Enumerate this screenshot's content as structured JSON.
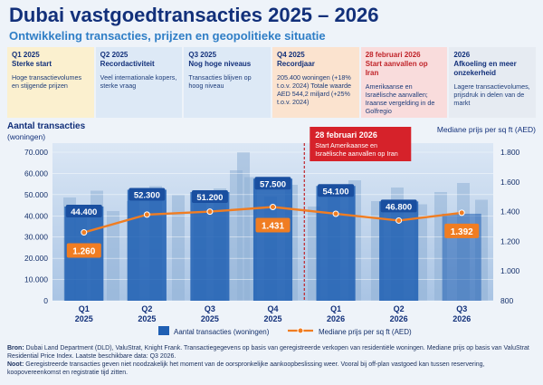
{
  "header": {
    "title": "Dubai vastgoedtransacties 2025 – 2026",
    "subtitle": "Ontwikkeling transacties, prijzen en geopolitieke situatie"
  },
  "timeline": [
    {
      "period": "Q1 2025",
      "heading": "Sterke start",
      "desc": "Hoge transactievolumes en stijgende prijzen",
      "color": "#fbf0cf"
    },
    {
      "period": "Q2 2025",
      "heading": "Recordactiviteit",
      "desc": "Veel internationale kopers, sterke vraag",
      "color": "#dde9f6"
    },
    {
      "period": "Q3 2025",
      "heading": "Nog hoge niveaus",
      "desc": "Transacties blijven op hoog niveau",
      "color": "#dde9f6"
    },
    {
      "period": "Q4 2025",
      "heading": "Recordjaar",
      "desc": "205.400 woningen (+18% t.o.v. 2024) Totale waarde AED 544,2 miljard (+25% t.o.v. 2024)",
      "color": "#fbe3cf"
    },
    {
      "period": "28 februari 2026",
      "heading": "Start aanvallen op Iran",
      "desc": "Amerikaanse en Israëlische aanvallen; Iraanse vergelding in de Golfregio",
      "color": "#f9dcdc"
    },
    {
      "period": "2026",
      "heading": "Afkoeling en meer onzekerheid",
      "desc": "Lagere transactievolumes, prijsdruk in delen van de markt",
      "color": "#e6ebf2"
    }
  ],
  "chart_data": {
    "type": "bar",
    "categories": [
      [
        "Q1",
        "2025"
      ],
      [
        "Q2",
        "2025"
      ],
      [
        "Q3",
        "2025"
      ],
      [
        "Q4",
        "2025"
      ],
      [
        "Q1",
        "2026"
      ],
      [
        "Q2",
        "2026"
      ],
      [
        "Q3",
        "2026"
      ]
    ],
    "series": [
      {
        "name": "Aantal transacties (woningen)",
        "type": "bar",
        "axis": "left",
        "values": [
          44400,
          52300,
          51200,
          57500,
          54100,
          46800,
          41000
        ],
        "labels": [
          "44.400",
          "52.300",
          "51.200",
          "57.500",
          "54.100",
          "46.800",
          ""
        ],
        "color": "#1f5fb3"
      },
      {
        "name": "Mediane prijs per sq ft (AED)",
        "type": "line",
        "axis": "right",
        "values": [
          1260,
          1380,
          1400,
          1431,
          null,
          1340,
          1392
        ],
        "labels": [
          "1.260",
          "",
          "",
          "1.431",
          "",
          "",
          "1.392"
        ],
        "color": "#f07d22"
      }
    ],
    "ylabel_left": "Aantal transacties\n(woningen)",
    "ylabel_right": "Mediane prijs per sq ft (AED)",
    "ylim_left": [
      0,
      70000
    ],
    "yticks_left": [
      "0",
      "10.000",
      "20.000",
      "30.000",
      "40.000",
      "50.000",
      "60.000",
      "70.000"
    ],
    "ylim_right": [
      800,
      1800
    ],
    "yticks_right": [
      "800",
      "1.000",
      "1.200",
      "1.400",
      "1.600",
      "1.800"
    ],
    "annotation": {
      "title": "28 februari 2026",
      "text": "Start Amerikaanse en Israëlische aanvallen op Iran"
    },
    "legend": "bottom-center"
  },
  "footer": {
    "source_label": "Bron:",
    "source": "Dubai Land Department (DLD), ValuStrat, Knight Frank. Transactiegegevens op basis van geregistreerde verkopen van residentiële woningen. Mediane prijs op basis van ValuStrat Residential Price Index. Laatste beschikbare data: Q3 2026.",
    "note_label": "Noot:",
    "note": "Geregistreerde transacties geven niet noodzakelijk het moment van de oorspronkelijke aankoopbeslissing weer. Vooral bij off-plan vastgoed kan tussen reservering, koopovereenkomst en registratie tijd zitten."
  }
}
